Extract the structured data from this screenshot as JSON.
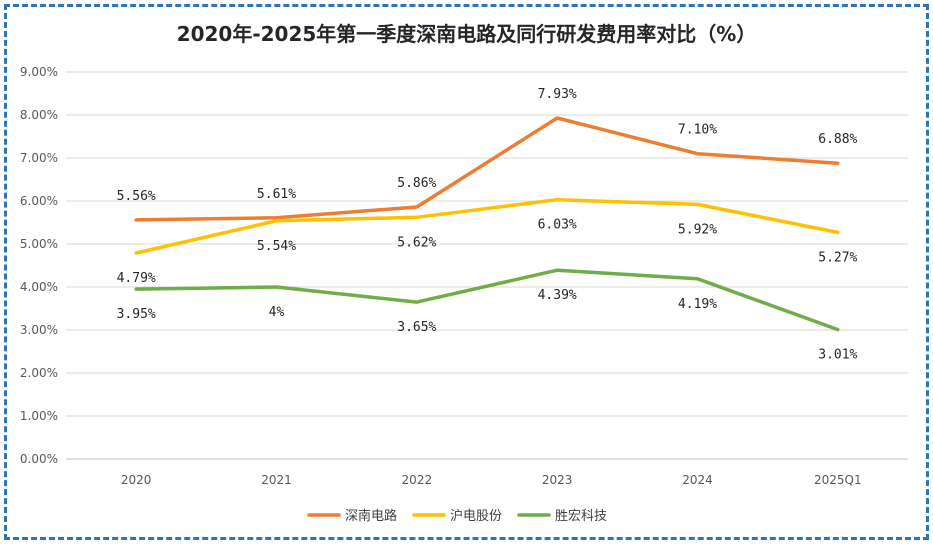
{
  "chart_data": {
    "type": "line",
    "title": "2020年-2025年第一季度深南电路及同行研发费用率对比（%）",
    "categories": [
      "2020",
      "2021",
      "2022",
      "2023",
      "2024",
      "2025Q1"
    ],
    "ylim": [
      0,
      9
    ],
    "yticks": [
      "0.00%",
      "1.00%",
      "2.00%",
      "3.00%",
      "4.00%",
      "5.00%",
      "6.00%",
      "7.00%",
      "8.00%",
      "9.00%"
    ],
    "grid": true,
    "legend_position": "bottom",
    "series": [
      {
        "name": "深南电路",
        "color": "#ed7d31",
        "values": [
          5.56,
          5.61,
          5.86,
          7.93,
          7.1,
          6.88
        ],
        "labels": [
          "5.56%",
          "5.61%",
          "5.86%",
          "7.93%",
          "7.10%",
          "6.88%"
        ],
        "label_position": "above"
      },
      {
        "name": "沪电股份",
        "color": "#ffc000",
        "values": [
          4.79,
          5.54,
          5.62,
          6.03,
          5.92,
          5.27
        ],
        "labels": [
          "4.79%",
          "5.54%",
          "5.62%",
          "6.03%",
          "5.92%",
          "5.27%"
        ],
        "label_position": "below"
      },
      {
        "name": "胜宏科技",
        "color": "#70ad47",
        "values": [
          3.95,
          4.0,
          3.65,
          4.39,
          4.19,
          3.01
        ],
        "labels": [
          "3.95%",
          "4%",
          "3.65%",
          "4.39%",
          "4.19%",
          "3.01%"
        ],
        "label_position": "below"
      }
    ]
  }
}
